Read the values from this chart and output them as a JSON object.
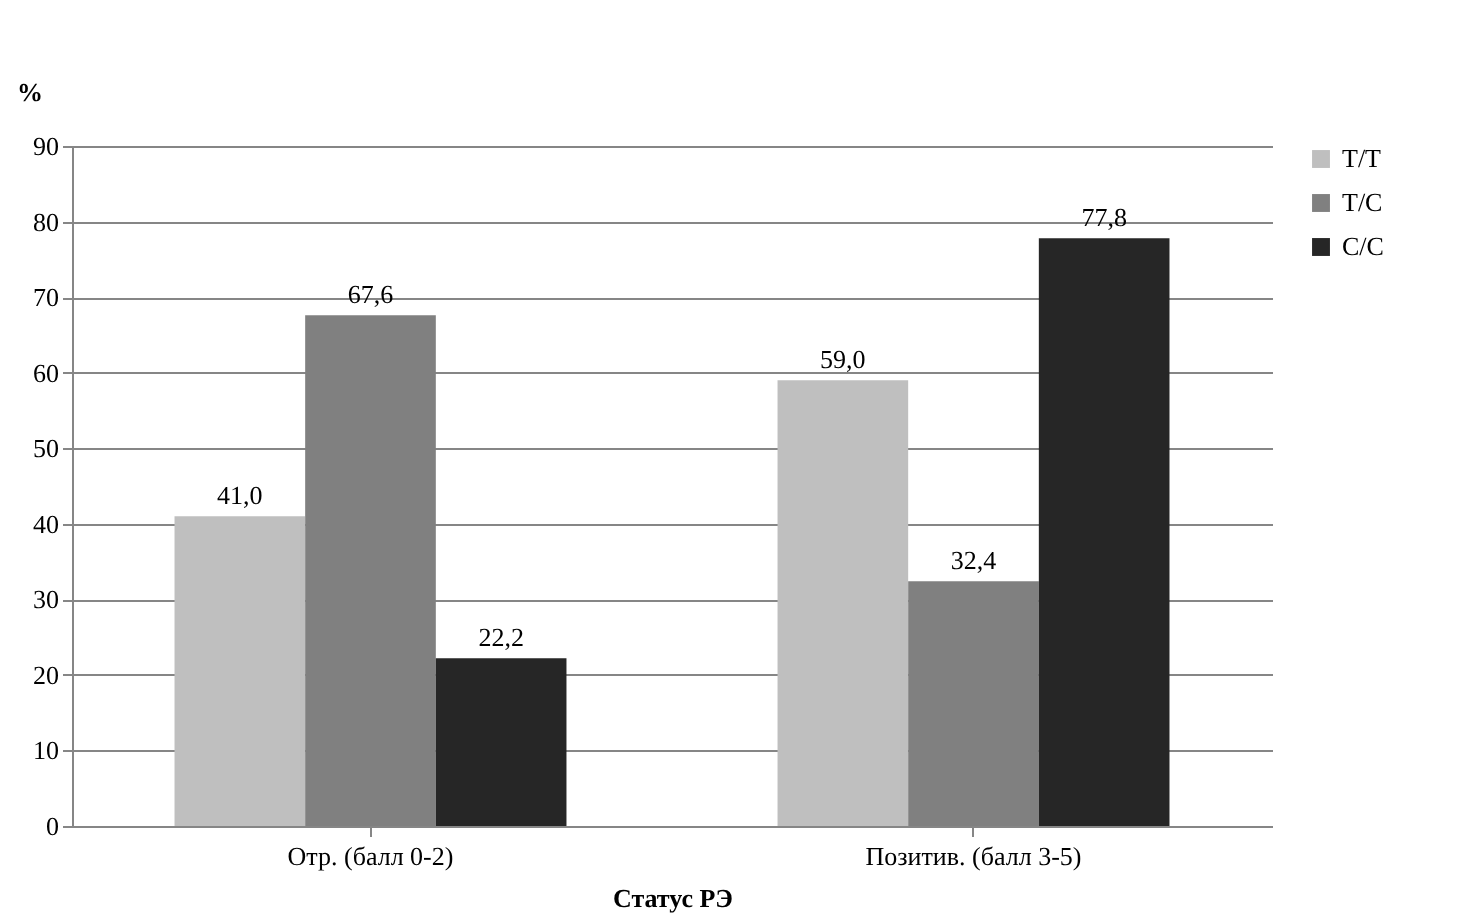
{
  "chart_data": {
    "type": "bar",
    "xlabel": "Статус РЭ",
    "ylabel": "%",
    "categories": [
      "Отр. (балл 0-2)",
      "Позитив. (балл 3-5)"
    ],
    "series": [
      {
        "name": "T/T",
        "color": "#bfbfbf",
        "values": [
          41.0,
          59.0
        ],
        "value_labels": [
          "41,0",
          "59,0"
        ]
      },
      {
        "name": "T/C",
        "color": "#808080",
        "values": [
          67.6,
          32.4
        ],
        "value_labels": [
          "67,6",
          "32,4"
        ]
      },
      {
        "name": "C/C",
        "color": "#262626",
        "values": [
          22.2,
          77.8
        ],
        "value_labels": [
          "22,2",
          "77,8"
        ]
      }
    ],
    "ylim": [
      0,
      90
    ],
    "yticks": [
      0,
      10,
      20,
      30,
      40,
      50,
      60,
      70,
      80,
      90
    ],
    "grid": "y",
    "legend": "right"
  }
}
